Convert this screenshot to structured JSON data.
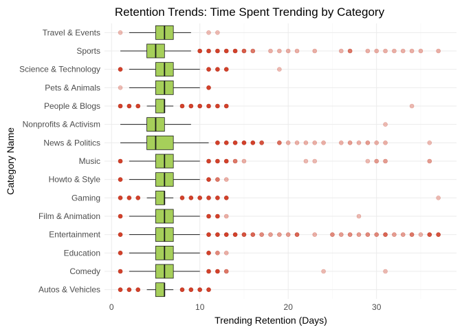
{
  "chart_data": {
    "type": "boxplot",
    "orientation": "horizontal",
    "title": "Retention Trends: Time Spent Trending by Category",
    "xlabel": "Trending Retention (Days)",
    "ylabel": "Category Name",
    "xlim": [
      0,
      38
    ],
    "x_ticks": [
      0,
      10,
      20,
      30
    ],
    "grid": true,
    "colors": {
      "box_fill": "#a6cf5a",
      "outlier": "#d2412a",
      "grid": "#ebebeb"
    },
    "categories": [
      "Travel & Events",
      "Sports",
      "Science & Technology",
      "Pets & Animals",
      "People & Blogs",
      "Nonprofits & Activism",
      "News & Politics",
      "Music",
      "Howto & Style",
      "Gaming",
      "Film & Animation",
      "Entertainment",
      "Education",
      "Comedy",
      "Autos & Vehicles"
    ],
    "boxes": [
      {
        "category": "Travel & Events",
        "whisker_low": 2,
        "q1": 5,
        "median": 6,
        "q3": 7,
        "whisker_high": 9,
        "outliers": [
          {
            "x": 1,
            "opacity": 0.35
          },
          {
            "x": 11,
            "opacity": 0.35
          },
          {
            "x": 12,
            "opacity": 0.35
          }
        ]
      },
      {
        "category": "Sports",
        "whisker_low": 1,
        "q1": 4,
        "median": 5,
        "q3": 6,
        "whisker_high": 9,
        "outliers": [
          {
            "x": 10,
            "opacity": 1
          },
          {
            "x": 11,
            "opacity": 1
          },
          {
            "x": 12,
            "opacity": 1
          },
          {
            "x": 13,
            "opacity": 1
          },
          {
            "x": 14,
            "opacity": 1
          },
          {
            "x": 15,
            "opacity": 0.85
          },
          {
            "x": 16,
            "opacity": 0.7
          },
          {
            "x": 18,
            "opacity": 0.4
          },
          {
            "x": 19,
            "opacity": 0.4
          },
          {
            "x": 20,
            "opacity": 0.4
          },
          {
            "x": 21,
            "opacity": 0.4
          },
          {
            "x": 23,
            "opacity": 0.4
          },
          {
            "x": 26,
            "opacity": 0.4
          },
          {
            "x": 27,
            "opacity": 0.7
          },
          {
            "x": 29,
            "opacity": 0.4
          },
          {
            "x": 30,
            "opacity": 0.4
          },
          {
            "x": 31,
            "opacity": 0.4
          },
          {
            "x": 32,
            "opacity": 0.4
          },
          {
            "x": 33,
            "opacity": 0.4
          },
          {
            "x": 34,
            "opacity": 0.4
          },
          {
            "x": 35,
            "opacity": 0.4
          },
          {
            "x": 37,
            "opacity": 0.4
          }
        ]
      },
      {
        "category": "Science & Technology",
        "whisker_low": 2,
        "q1": 5,
        "median": 6,
        "q3": 7,
        "whisker_high": 10,
        "outliers": [
          {
            "x": 1,
            "opacity": 1
          },
          {
            "x": 11,
            "opacity": 1
          },
          {
            "x": 12,
            "opacity": 1
          },
          {
            "x": 13,
            "opacity": 1
          },
          {
            "x": 19,
            "opacity": 0.35
          }
        ]
      },
      {
        "category": "Pets & Animals",
        "whisker_low": 2,
        "q1": 5,
        "median": 6,
        "q3": 7,
        "whisker_high": 10,
        "outliers": [
          {
            "x": 1,
            "opacity": 0.35
          },
          {
            "x": 11,
            "opacity": 1
          }
        ]
      },
      {
        "category": "People & Blogs",
        "whisker_low": 4,
        "q1": 5,
        "median": 6,
        "q3": 6,
        "whisker_high": 7,
        "outliers": [
          {
            "x": 1,
            "opacity": 1
          },
          {
            "x": 2,
            "opacity": 1
          },
          {
            "x": 3,
            "opacity": 1
          },
          {
            "x": 8,
            "opacity": 1
          },
          {
            "x": 9,
            "opacity": 1
          },
          {
            "x": 10,
            "opacity": 1
          },
          {
            "x": 11,
            "opacity": 1
          },
          {
            "x": 12,
            "opacity": 1
          },
          {
            "x": 13,
            "opacity": 1
          },
          {
            "x": 34,
            "opacity": 0.35
          }
        ]
      },
      {
        "category": "Nonprofits & Activism",
        "whisker_low": 1,
        "q1": 4,
        "median": 5,
        "q3": 6,
        "whisker_high": 9,
        "outliers": [
          {
            "x": 31,
            "opacity": 0.35
          }
        ]
      },
      {
        "category": "News & Politics",
        "whisker_low": 1,
        "q1": 4,
        "median": 5,
        "q3": 7,
        "whisker_high": 11,
        "outliers": [
          {
            "x": 12,
            "opacity": 1
          },
          {
            "x": 13,
            "opacity": 1
          },
          {
            "x": 14,
            "opacity": 1
          },
          {
            "x": 15,
            "opacity": 1
          },
          {
            "x": 16,
            "opacity": 1
          },
          {
            "x": 17,
            "opacity": 0.9
          },
          {
            "x": 19,
            "opacity": 0.75
          },
          {
            "x": 20,
            "opacity": 0.4
          },
          {
            "x": 21,
            "opacity": 0.4
          },
          {
            "x": 22,
            "opacity": 0.4
          },
          {
            "x": 23,
            "opacity": 0.4
          },
          {
            "x": 24,
            "opacity": 0.4
          },
          {
            "x": 26,
            "opacity": 0.4
          },
          {
            "x": 27,
            "opacity": 0.5
          },
          {
            "x": 28,
            "opacity": 0.4
          },
          {
            "x": 29,
            "opacity": 0.5
          },
          {
            "x": 30,
            "opacity": 0.4
          },
          {
            "x": 31,
            "opacity": 0.4
          },
          {
            "x": 36,
            "opacity": 0.35
          }
        ]
      },
      {
        "category": "Music",
        "whisker_low": 2,
        "q1": 5,
        "median": 6,
        "q3": 7,
        "whisker_high": 10,
        "outliers": [
          {
            "x": 1,
            "opacity": 1
          },
          {
            "x": 11,
            "opacity": 1
          },
          {
            "x": 12,
            "opacity": 1
          },
          {
            "x": 13,
            "opacity": 1
          },
          {
            "x": 14,
            "opacity": 0.7
          },
          {
            "x": 15,
            "opacity": 0.4
          },
          {
            "x": 22,
            "opacity": 0.35
          },
          {
            "x": 23,
            "opacity": 0.35
          },
          {
            "x": 29,
            "opacity": 0.35
          },
          {
            "x": 30,
            "opacity": 0.5
          },
          {
            "x": 31,
            "opacity": 0.5
          },
          {
            "x": 36,
            "opacity": 0.5
          }
        ]
      },
      {
        "category": "Howto & Style",
        "whisker_low": 2,
        "q1": 5,
        "median": 6,
        "q3": 7,
        "whisker_high": 10,
        "outliers": [
          {
            "x": 1,
            "opacity": 1
          },
          {
            "x": 11,
            "opacity": 1
          },
          {
            "x": 12,
            "opacity": 0.7
          },
          {
            "x": 13,
            "opacity": 0.4
          }
        ]
      },
      {
        "category": "Gaming",
        "whisker_low": 4,
        "q1": 5,
        "median": 6,
        "q3": 6,
        "whisker_high": 7,
        "outliers": [
          {
            "x": 1,
            "opacity": 1
          },
          {
            "x": 2,
            "opacity": 1
          },
          {
            "x": 3,
            "opacity": 1
          },
          {
            "x": 8,
            "opacity": 1
          },
          {
            "x": 9,
            "opacity": 1
          },
          {
            "x": 10,
            "opacity": 1
          },
          {
            "x": 11,
            "opacity": 1
          },
          {
            "x": 12,
            "opacity": 1
          },
          {
            "x": 13,
            "opacity": 1
          },
          {
            "x": 37,
            "opacity": 0.35
          }
        ]
      },
      {
        "category": "Film & Animation",
        "whisker_low": 2,
        "q1": 5,
        "median": 6,
        "q3": 7,
        "whisker_high": 10,
        "outliers": [
          {
            "x": 1,
            "opacity": 1
          },
          {
            "x": 11,
            "opacity": 1
          },
          {
            "x": 12,
            "opacity": 1
          },
          {
            "x": 13,
            "opacity": 0.4
          },
          {
            "x": 28,
            "opacity": 0.35
          }
        ]
      },
      {
        "category": "Entertainment",
        "whisker_low": 2,
        "q1": 5,
        "median": 6,
        "q3": 7,
        "whisker_high": 10,
        "outliers": [
          {
            "x": 1,
            "opacity": 1
          },
          {
            "x": 11,
            "opacity": 1
          },
          {
            "x": 12,
            "opacity": 1
          },
          {
            "x": 13,
            "opacity": 1
          },
          {
            "x": 14,
            "opacity": 1
          },
          {
            "x": 15,
            "opacity": 0.9
          },
          {
            "x": 16,
            "opacity": 0.8
          },
          {
            "x": 17,
            "opacity": 0.6
          },
          {
            "x": 18,
            "opacity": 0.5
          },
          {
            "x": 19,
            "opacity": 0.5
          },
          {
            "x": 20,
            "opacity": 0.5
          },
          {
            "x": 21,
            "opacity": 0.8
          },
          {
            "x": 23,
            "opacity": 0.4
          },
          {
            "x": 25,
            "opacity": 0.6
          },
          {
            "x": 26,
            "opacity": 0.5
          },
          {
            "x": 27,
            "opacity": 0.6
          },
          {
            "x": 28,
            "opacity": 0.5
          },
          {
            "x": 29,
            "opacity": 0.6
          },
          {
            "x": 30,
            "opacity": 0.6
          },
          {
            "x": 31,
            "opacity": 0.8
          },
          {
            "x": 32,
            "opacity": 0.5
          },
          {
            "x": 33,
            "opacity": 0.5
          },
          {
            "x": 34,
            "opacity": 0.7
          },
          {
            "x": 35,
            "opacity": 0.4
          },
          {
            "x": 36,
            "opacity": 0.9
          },
          {
            "x": 37,
            "opacity": 0.9
          }
        ]
      },
      {
        "category": "Education",
        "whisker_low": 2,
        "q1": 5,
        "median": 6,
        "q3": 7,
        "whisker_high": 10,
        "outliers": [
          {
            "x": 1,
            "opacity": 1
          },
          {
            "x": 11,
            "opacity": 1
          },
          {
            "x": 12,
            "opacity": 0.6
          },
          {
            "x": 13,
            "opacity": 0.4
          }
        ]
      },
      {
        "category": "Comedy",
        "whisker_low": 2,
        "q1": 5,
        "median": 6,
        "q3": 7,
        "whisker_high": 10,
        "outliers": [
          {
            "x": 1,
            "opacity": 1
          },
          {
            "x": 11,
            "opacity": 1
          },
          {
            "x": 12,
            "opacity": 1
          },
          {
            "x": 13,
            "opacity": 0.7
          },
          {
            "x": 24,
            "opacity": 0.35
          },
          {
            "x": 31,
            "opacity": 0.35
          }
        ]
      },
      {
        "category": "Autos & Vehicles",
        "whisker_low": 4,
        "q1": 5,
        "median": 6,
        "q3": 6,
        "whisker_high": 7,
        "outliers": [
          {
            "x": 1,
            "opacity": 1
          },
          {
            "x": 2,
            "opacity": 1
          },
          {
            "x": 3,
            "opacity": 1
          },
          {
            "x": 8,
            "opacity": 1
          },
          {
            "x": 9,
            "opacity": 1
          },
          {
            "x": 10,
            "opacity": 1
          },
          {
            "x": 11,
            "opacity": 1
          }
        ]
      }
    ]
  }
}
